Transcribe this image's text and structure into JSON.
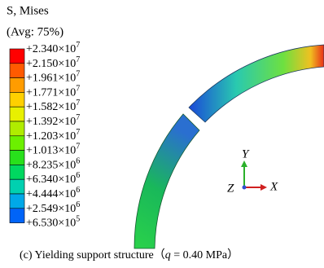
{
  "legend": {
    "title": "S, Mises",
    "subtitle": "(Avg: 75%)",
    "entries": [
      {
        "mantissa": "+2.340×10",
        "exponent": "7"
      },
      {
        "mantissa": "+2.150×10",
        "exponent": "7"
      },
      {
        "mantissa": "+1.961×10",
        "exponent": "7"
      },
      {
        "mantissa": "+1.771×10",
        "exponent": "7"
      },
      {
        "mantissa": "+1.582×10",
        "exponent": "7"
      },
      {
        "mantissa": "+1.392×10",
        "exponent": "7"
      },
      {
        "mantissa": "+1.203×10",
        "exponent": "7"
      },
      {
        "mantissa": "+1.013×10",
        "exponent": "7"
      },
      {
        "mantissa": "+8.235×10",
        "exponent": "6"
      },
      {
        "mantissa": "+6.340×10",
        "exponent": "6"
      },
      {
        "mantissa": "+4.444×10",
        "exponent": "6"
      },
      {
        "mantissa": "+2.549×10",
        "exponent": "6"
      },
      {
        "mantissa": "+6.530×10",
        "exponent": "5"
      }
    ]
  },
  "axes": {
    "y": "Y",
    "z": "Z",
    "x": "X"
  },
  "caption": {
    "prefix": "(c) Yielding support structure（",
    "variable": "q",
    "suffix": " = 0.40 MPa）"
  }
}
